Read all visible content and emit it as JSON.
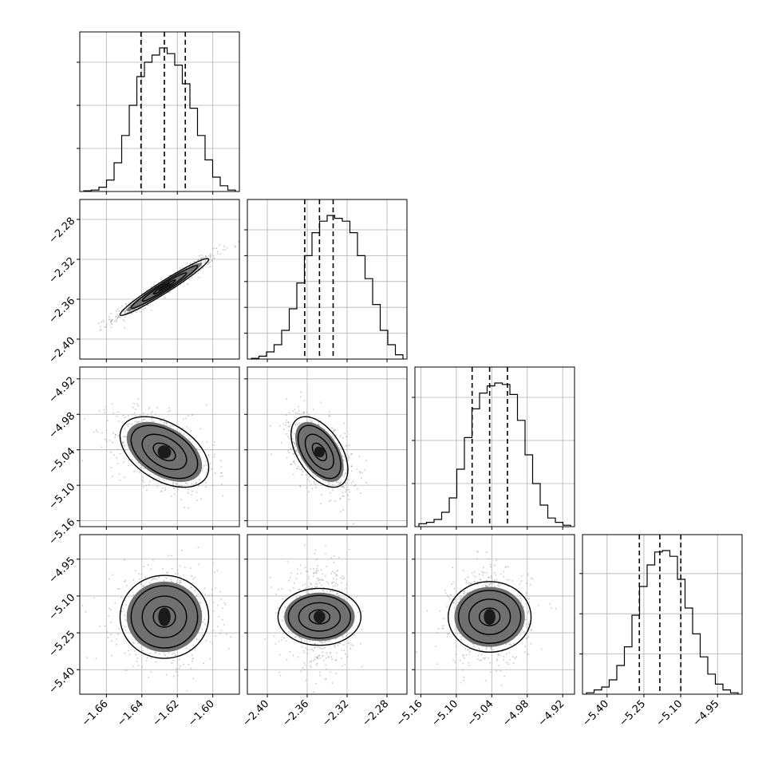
{
  "chart_data": {
    "type": "corner",
    "grid": true,
    "params": [
      {
        "range": [
          -1.675,
          -1.585
        ],
        "ticks": [
          -1.66,
          -1.64,
          -1.62,
          -1.6
        ],
        "tick_labels": [
          "−1.66",
          "−1.64",
          "−1.62",
          "−1.60"
        ],
        "quantiles": [
          -1.6405,
          -1.6273,
          -1.6155
        ],
        "hist": [
          0.005,
          0.01,
          0.03,
          0.08,
          0.2,
          0.39,
          0.6,
          0.8,
          0.9,
          0.95,
          1.0,
          0.96,
          0.88,
          0.75,
          0.58,
          0.39,
          0.22,
          0.1,
          0.04,
          0.01
        ],
        "hist_ticks": [
          0.3,
          0.6,
          0.9
        ]
      },
      {
        "range": [
          -2.42,
          -2.26
        ],
        "ticks": [
          -2.4,
          -2.36,
          -2.32,
          -2.28
        ],
        "tick_labels": [
          "−2.40",
          "−2.36",
          "−2.32",
          "−2.28"
        ],
        "quantiles": [
          -2.3625,
          -2.3477,
          -2.334
        ],
        "hist": [
          0.005,
          0.02,
          0.05,
          0.1,
          0.2,
          0.35,
          0.53,
          0.72,
          0.88,
          0.96,
          1.0,
          0.98,
          0.96,
          0.88,
          0.72,
          0.56,
          0.38,
          0.2,
          0.1,
          0.03
        ],
        "hist_ticks": [
          0.18,
          0.36,
          0.54,
          0.72,
          0.9
        ]
      },
      {
        "range": [
          -5.17,
          -4.9
        ],
        "ticks": [
          -5.16,
          -5.1,
          -5.04,
          -4.98,
          -4.92
        ],
        "tick_labels": [
          "−5.16",
          "−5.10",
          "−5.04",
          "−4.98",
          "−4.92"
        ],
        "quantiles": [
          -5.0732,
          -5.0436,
          -5.0135
        ],
        "hist": [
          0.02,
          0.03,
          0.05,
          0.1,
          0.2,
          0.4,
          0.62,
          0.82,
          0.93,
          0.98,
          1.0,
          0.99,
          0.92,
          0.74,
          0.5,
          0.3,
          0.15,
          0.06,
          0.03,
          0.01
        ],
        "hist_ticks": [
          0.3,
          0.6,
          0.9
        ]
      },
      {
        "range": [
          -5.5,
          -4.85
        ],
        "ticks": [
          -5.4,
          -5.25,
          -5.1,
          -4.95
        ],
        "tick_labels": [
          "−5.40",
          "−5.25",
          "−5.10",
          "−4.95"
        ],
        "quantiles": [
          -5.2684,
          -5.185,
          -5.0995
        ],
        "hist": [
          0.01,
          0.03,
          0.05,
          0.1,
          0.2,
          0.33,
          0.55,
          0.75,
          0.9,
          0.99,
          1.0,
          0.96,
          0.8,
          0.6,
          0.42,
          0.26,
          0.14,
          0.07,
          0.03,
          0.01
        ],
        "hist_ticks": [
          0.28,
          0.56,
          0.84
        ]
      }
    ],
    "pairs": [
      {
        "row": 1,
        "col": 0,
        "rho": 0.97
      },
      {
        "row": 2,
        "col": 0,
        "rho": -0.45
      },
      {
        "row": 2,
        "col": 1,
        "rho": -0.5
      },
      {
        "row": 3,
        "col": 0,
        "rho": 0.0
      },
      {
        "row": 3,
        "col": 1,
        "rho": 0.0
      },
      {
        "row": 3,
        "col": 2,
        "rho": 0.0
      }
    ]
  }
}
